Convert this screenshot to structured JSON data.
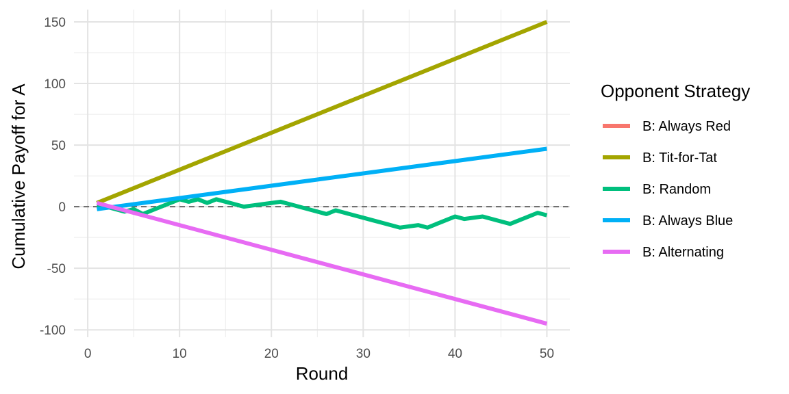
{
  "chart_data": {
    "type": "line",
    "xlabel": "Round",
    "ylabel": "Cumulative Payoff for A",
    "xlim": [
      -1.5,
      52.5
    ],
    "ylim": [
      -106,
      160
    ],
    "x_ticks": [
      0,
      10,
      20,
      30,
      40,
      50
    ],
    "y_ticks": [
      -100,
      -50,
      0,
      50,
      100,
      150
    ],
    "grid": true,
    "reference_line": {
      "y": 0,
      "style": "dashed",
      "color": "#666666"
    },
    "legend": {
      "title": "Opponent Strategy",
      "position": "right",
      "entries": [
        "B: Always Red",
        "B: Tit-for-Tat",
        "B: Random",
        "B: Always Blue",
        "B: Alternating"
      ]
    },
    "series": [
      {
        "name": "B: Always Red",
        "color": "#F8766D",
        "x": [],
        "y": []
      },
      {
        "name": "B: Tit-for-Tat",
        "color": "#A3A500",
        "x": [
          1,
          50
        ],
        "y": [
          3,
          150
        ]
      },
      {
        "name": "B: Random",
        "color": "#00BF7D",
        "x": [
          1,
          2,
          3,
          4,
          5,
          6,
          7,
          8,
          9,
          10,
          11,
          12,
          13,
          14,
          15,
          16,
          17,
          18,
          19,
          20,
          21,
          22,
          23,
          24,
          25,
          26,
          27,
          28,
          29,
          30,
          31,
          32,
          33,
          34,
          35,
          36,
          37,
          38,
          39,
          40,
          41,
          42,
          43,
          44,
          45,
          46,
          47,
          48,
          49,
          50
        ],
        "y": [
          1,
          0,
          -2,
          -4,
          -2,
          -6,
          -3,
          0,
          3,
          6,
          4,
          6,
          3,
          6,
          4,
          2,
          0,
          1,
          2,
          3,
          4,
          2,
          0,
          -2,
          -4,
          -6,
          -3,
          -5,
          -7,
          -9,
          -11,
          -13,
          -15,
          -17,
          -16,
          -15,
          -17,
          -14,
          -11,
          -8,
          -10,
          -9,
          -8,
          -10,
          -12,
          -14,
          -11,
          -8,
          -5,
          -7
        ]
      },
      {
        "name": "B: Always Blue",
        "color": "#00B0F6",
        "x": [
          1,
          50
        ],
        "y": [
          -2,
          47
        ]
      },
      {
        "name": "B: Alternating",
        "color": "#E76BF3",
        "x": [
          1,
          50
        ],
        "y": [
          3,
          -95
        ]
      }
    ]
  }
}
